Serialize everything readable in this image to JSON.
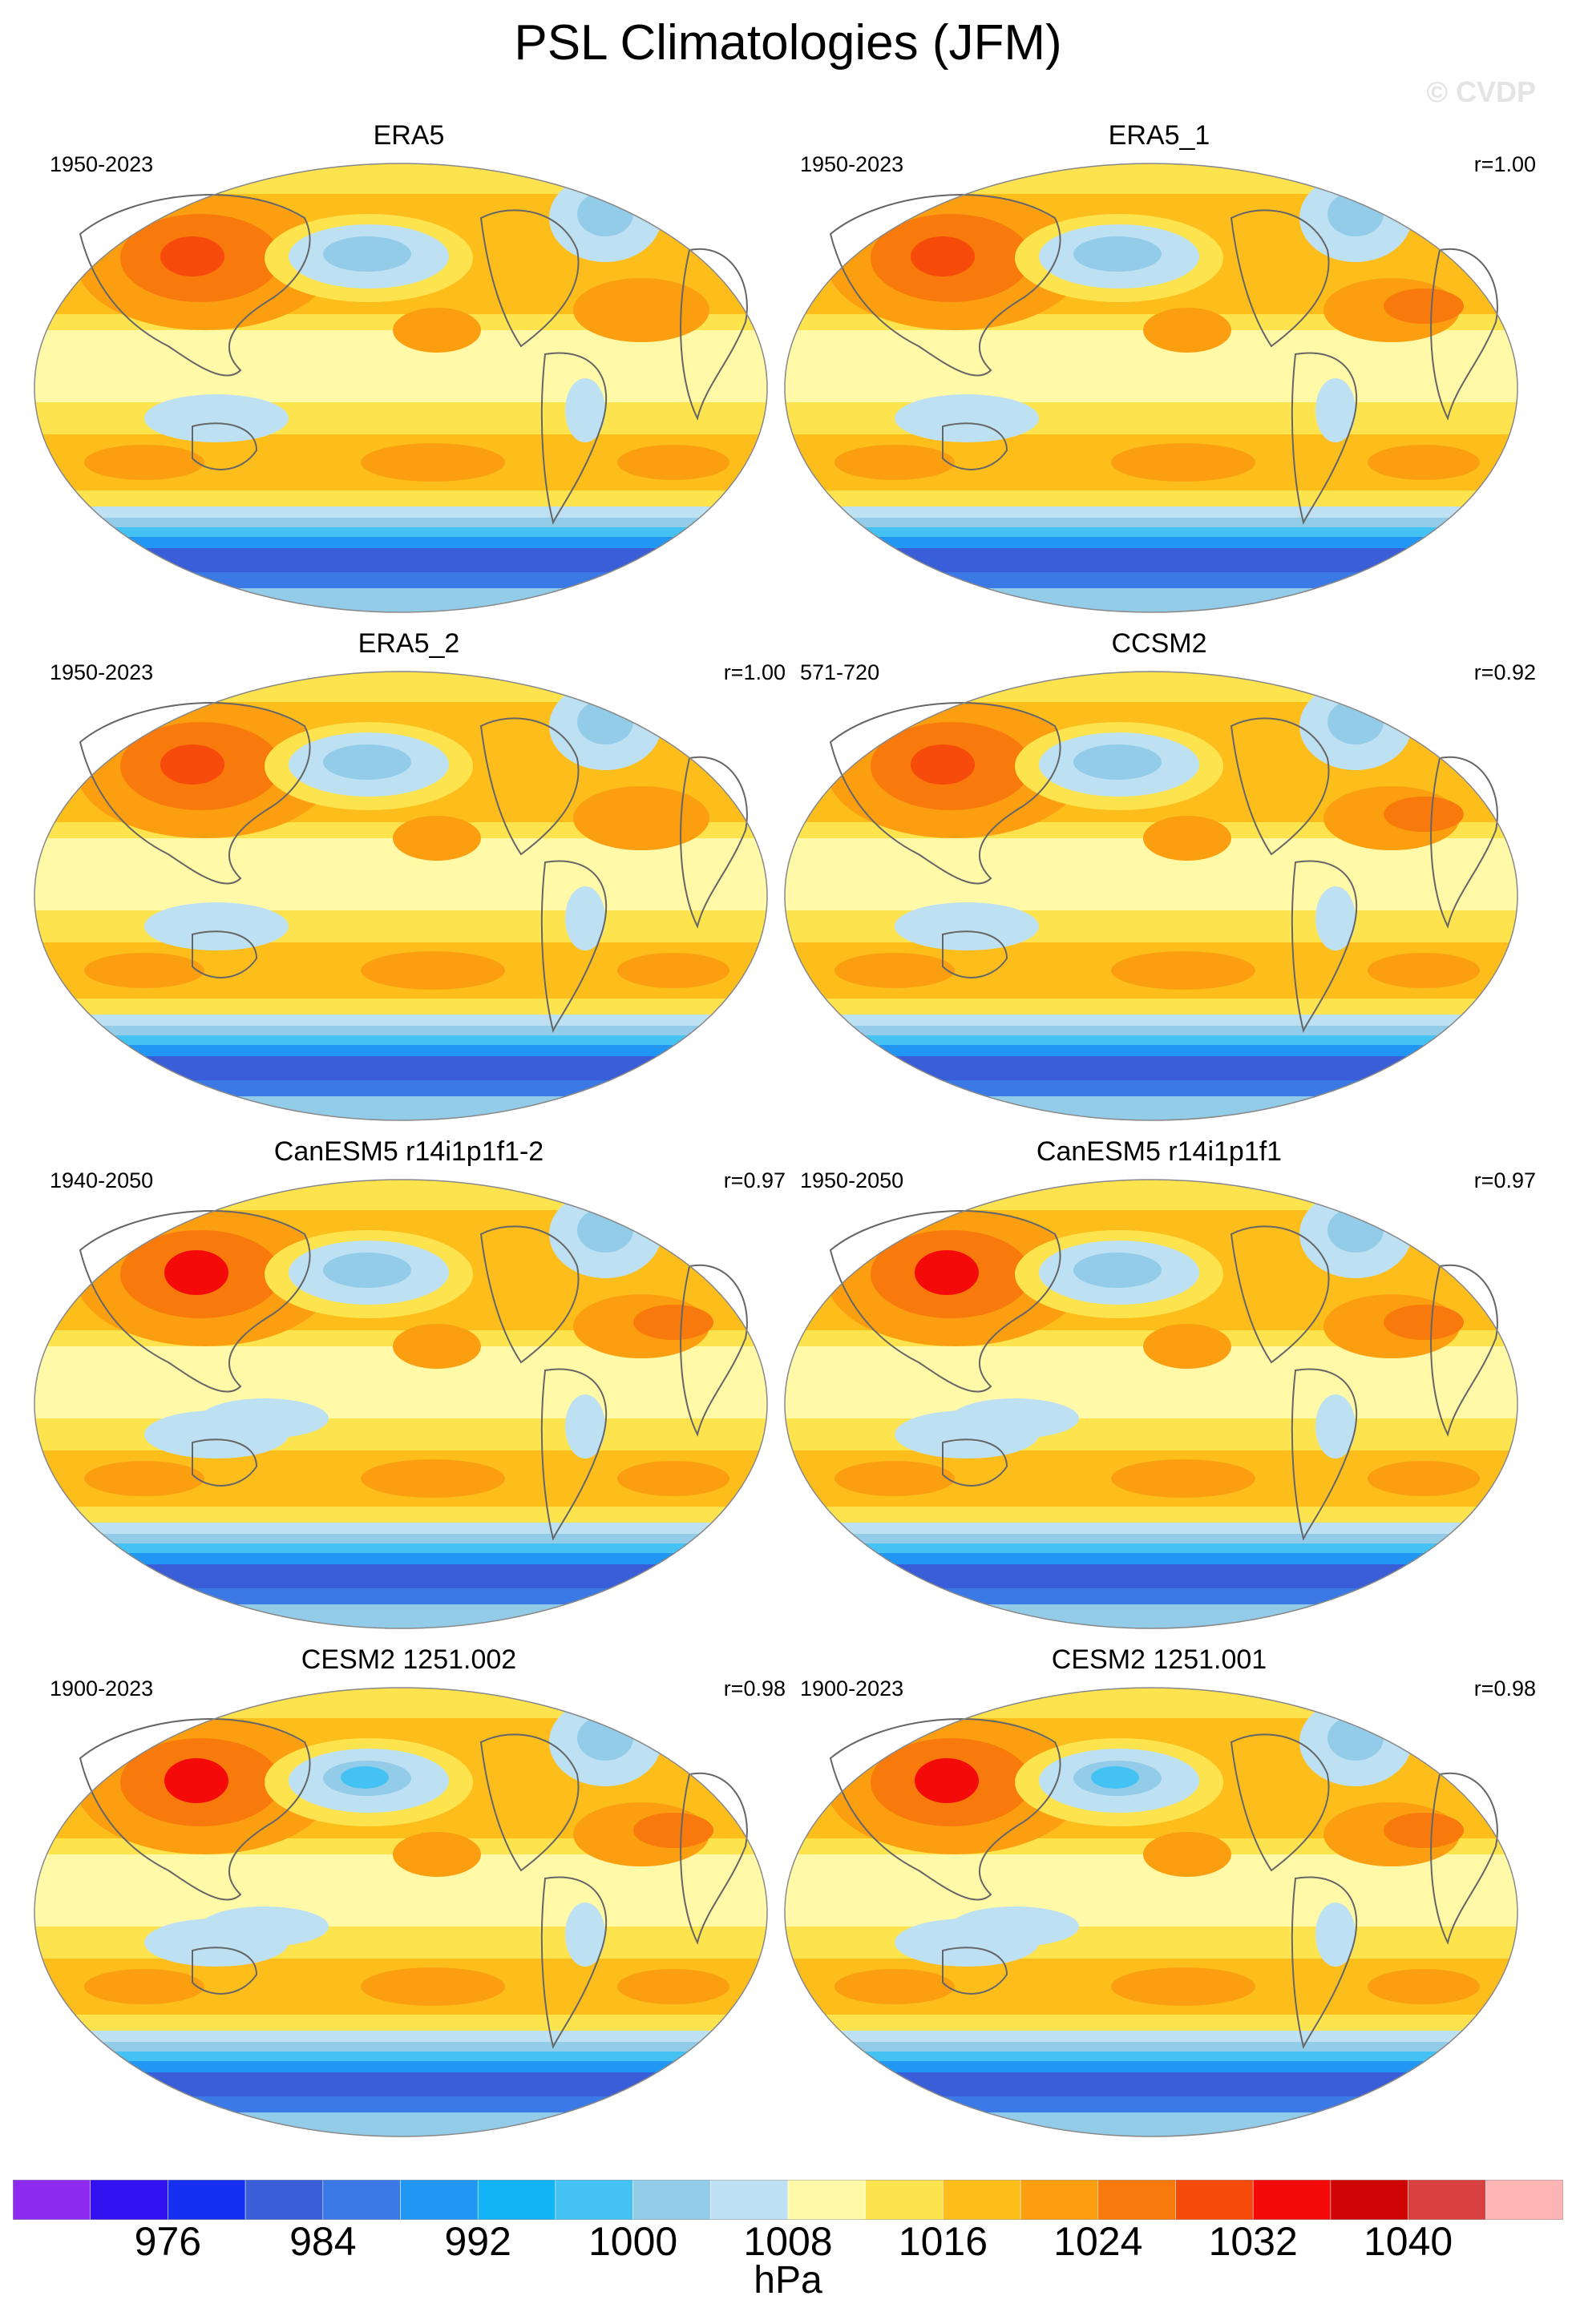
{
  "figure": {
    "title": "PSL Climatologies (JFM)",
    "watermark": "© CVDP"
  },
  "panels": [
    {
      "title": "ERA5",
      "years": "1950-2023",
      "corr": ""
    },
    {
      "title": "ERA5_1",
      "years": "1950-2023",
      "corr": "r=1.00"
    },
    {
      "title": "ERA5_2",
      "years": "1950-2023",
      "corr": "r=1.00"
    },
    {
      "title": "CCSM2",
      "years": "571-720",
      "corr": "r=0.92"
    },
    {
      "title": "CanESM5 r14i1p1f1-2",
      "years": "1940-2050",
      "corr": "r=0.97"
    },
    {
      "title": "CanESM5 r14i1p1f1",
      "years": "1950-2050",
      "corr": "r=0.97"
    },
    {
      "title": "CESM2 1251.002",
      "years": "1900-2023",
      "corr": "r=0.98"
    },
    {
      "title": "CESM2 1251.001",
      "years": "1900-2023",
      "corr": "r=0.98"
    }
  ],
  "colorbar": {
    "unit": "hPa",
    "tick_labels": [
      "976",
      "984",
      "992",
      "1000",
      "1008",
      "1016",
      "1024",
      "1032",
      "1040"
    ],
    "colors": [
      "#8e2aef",
      "#3212f0",
      "#1530f0",
      "#3a5ed8",
      "#3b7ae6",
      "#2196f3",
      "#13b4f6",
      "#45c2f4",
      "#93cce8",
      "#bde1f2",
      "#fff9a8",
      "#fde34d",
      "#fdbe1c",
      "#fb9f10",
      "#f97a0c",
      "#f64b0b",
      "#f50a0a",
      "#cf0505",
      "#d94040",
      "#fcb4b4"
    ]
  }
}
